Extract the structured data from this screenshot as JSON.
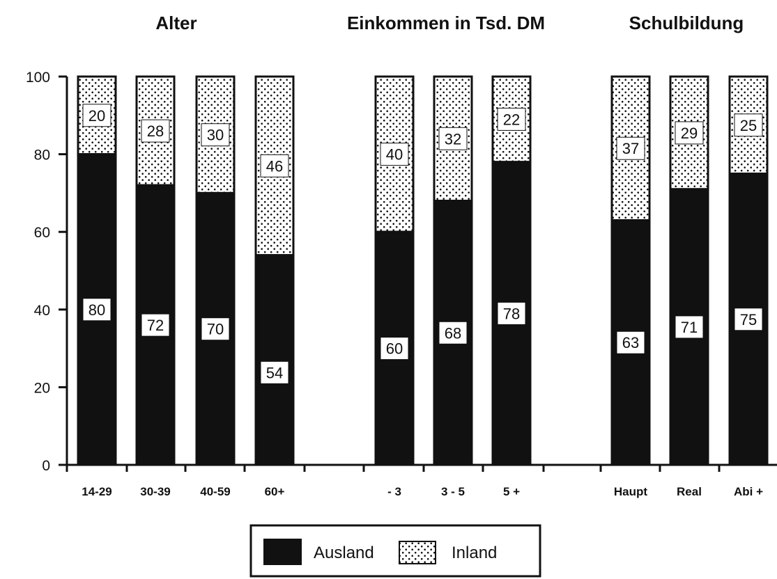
{
  "chart_data": {
    "type": "bar",
    "stacked": true,
    "groups": [
      {
        "title": "Alter",
        "categories": [
          "14-29",
          "30-39",
          "40-59",
          "60+"
        ]
      },
      {
        "title": "Einkommen in Tsd. DM",
        "categories": [
          "- 3",
          "3 - 5",
          "5 +"
        ]
      },
      {
        "title": "Schulbildung",
        "categories": [
          "Haupt",
          "Real",
          "Abi +"
        ]
      }
    ],
    "categories": [
      "14-29",
      "30-39",
      "40-59",
      "60+",
      "- 3",
      "3 - 5",
      "5 +",
      "Haupt",
      "Real",
      "Abi +"
    ],
    "series": [
      {
        "name": "Ausland",
        "values": [
          80,
          72,
          70,
          54,
          60,
          68,
          78,
          63,
          71,
          75
        ]
      },
      {
        "name": "Inland",
        "values": [
          20,
          28,
          30,
          46,
          40,
          32,
          22,
          37,
          29,
          25
        ]
      }
    ],
    "ylim": [
      0,
      100
    ],
    "yticks": [
      0,
      20,
      40,
      60,
      80,
      100
    ],
    "legend": {
      "placement": "bottom-center"
    },
    "colors": {
      "Ausland": "#111111",
      "Inland": "#ffffff",
      "dots": "#111111"
    }
  }
}
